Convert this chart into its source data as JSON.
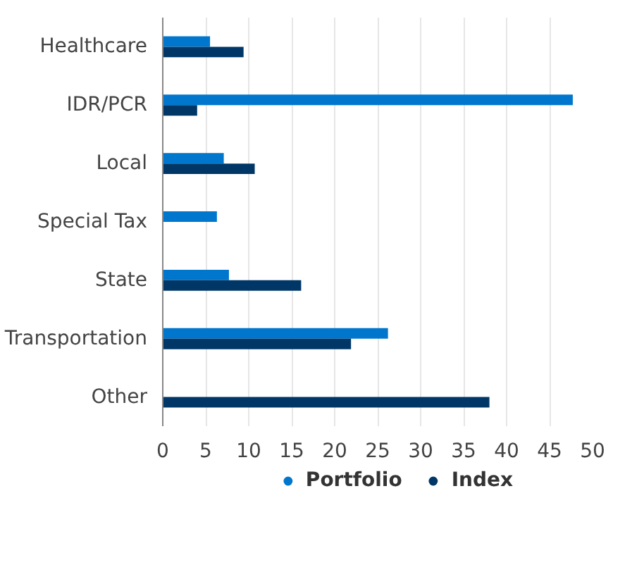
{
  "chart_data": {
    "type": "bar",
    "orientation": "horizontal",
    "categories": [
      "Healthcare",
      "IDR/PCR",
      "Local",
      "Special Tax",
      "State",
      "Transportation",
      "Other"
    ],
    "series": [
      {
        "name": "Portfolio",
        "color": "#0077cc",
        "values": [
          5.5,
          47.7,
          7.1,
          6.3,
          7.7,
          26.2,
          null
        ]
      },
      {
        "name": "Index",
        "color": "#003767",
        "values": [
          9.4,
          4.0,
          10.7,
          null,
          16.1,
          21.9,
          38.0
        ]
      }
    ],
    "xlim": [
      0,
      50
    ],
    "xticks": [
      0,
      5,
      10,
      15,
      20,
      25,
      30,
      35,
      40,
      45,
      50
    ],
    "grid": "x",
    "legend": "bottom"
  }
}
